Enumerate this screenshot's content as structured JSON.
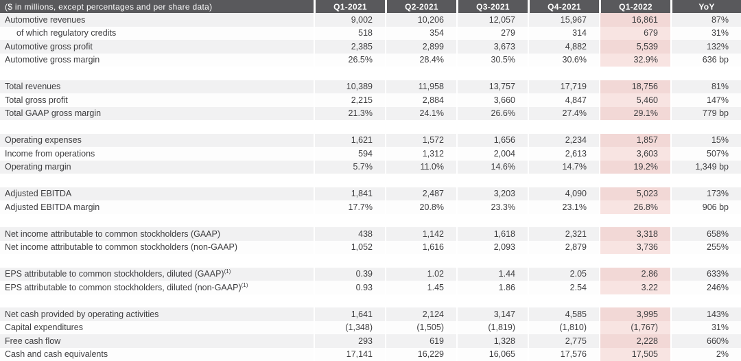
{
  "colors": {
    "header_bg": "#59595c",
    "header_text": "#ffffff",
    "stripe_gray": "#f1f1f2",
    "row_white": "#fdfdfd",
    "highlight_pink_on_gray_row": "#f2d8d6",
    "highlight_pink_on_white_row": "#f8e4e2",
    "body_text": "#3e3e40"
  },
  "chart_data": {
    "type": "table",
    "title": "($ in millions, except percentages and per share data)",
    "columns": [
      "Q1-2021",
      "Q2-2021",
      "Q3-2021",
      "Q4-2021",
      "Q1-2022",
      "YoY"
    ],
    "highlight_column": "Q1-2022",
    "groups": [
      {
        "rows": [
          {
            "label": "Automotive revenues",
            "values": [
              "9,002",
              "10,206",
              "12,057",
              "15,967",
              "16,861",
              "87%"
            ]
          },
          {
            "label": "of which regulatory credits",
            "indent": true,
            "values": [
              "518",
              "354",
              "279",
              "314",
              "679",
              "31%"
            ]
          },
          {
            "label": "Automotive gross profit",
            "values": [
              "2,385",
              "2,899",
              "3,673",
              "4,882",
              "5,539",
              "132%"
            ]
          },
          {
            "label": "Automotive gross margin",
            "values": [
              "26.5%",
              "28.4%",
              "30.5%",
              "30.6%",
              "32.9%",
              "636 bp"
            ]
          }
        ]
      },
      {
        "rows": [
          {
            "label": "Total revenues",
            "values": [
              "10,389",
              "11,958",
              "13,757",
              "17,719",
              "18,756",
              "81%"
            ]
          },
          {
            "label": "Total gross profit",
            "values": [
              "2,215",
              "2,884",
              "3,660",
              "4,847",
              "5,460",
              "147%"
            ]
          },
          {
            "label": "Total GAAP gross margin",
            "values": [
              "21.3%",
              "24.1%",
              "26.6%",
              "27.4%",
              "29.1%",
              "779 bp"
            ]
          }
        ]
      },
      {
        "rows": [
          {
            "label": "Operating expenses",
            "values": [
              "1,621",
              "1,572",
              "1,656",
              "2,234",
              "1,857",
              "15%"
            ]
          },
          {
            "label": "Income from operations",
            "values": [
              "594",
              "1,312",
              "2,004",
              "2,613",
              "3,603",
              "507%"
            ]
          },
          {
            "label": "Operating margin",
            "values": [
              "5.7%",
              "11.0%",
              "14.6%",
              "14.7%",
              "19.2%",
              "1,349 bp"
            ]
          }
        ]
      },
      {
        "rows": [
          {
            "label": "Adjusted EBITDA",
            "values": [
              "1,841",
              "2,487",
              "3,203",
              "4,090",
              "5,023",
              "173%"
            ]
          },
          {
            "label": "Adjusted EBITDA margin",
            "values": [
              "17.7%",
              "20.8%",
              "23.3%",
              "23.1%",
              "26.8%",
              "906 bp"
            ]
          }
        ]
      },
      {
        "rows": [
          {
            "label": "Net income attributable to common stockholders (GAAP)",
            "values": [
              "438",
              "1,142",
              "1,618",
              "2,321",
              "3,318",
              "658%"
            ]
          },
          {
            "label": "Net income attributable to common stockholders (non-GAAP)",
            "values": [
              "1,052",
              "1,616",
              "2,093",
              "2,879",
              "3,736",
              "255%"
            ]
          }
        ]
      },
      {
        "rows": [
          {
            "label": "EPS attributable to common stockholders, diluted (GAAP)",
            "sup": "(1)",
            "values": [
              "0.39",
              "1.02",
              "1.44",
              "2.05",
              "2.86",
              "633%"
            ]
          },
          {
            "label": "EPS attributable to common stockholders, diluted (non-GAAP)",
            "sup": "(1)",
            "values": [
              "0.93",
              "1.45",
              "1.86",
              "2.54",
              "3.22",
              "246%"
            ]
          }
        ]
      },
      {
        "rows": [
          {
            "label": "Net cash provided by operating activities",
            "values": [
              "1,641",
              "2,124",
              "3,147",
              "4,585",
              "3,995",
              "143%"
            ]
          },
          {
            "label": "Capital expenditures",
            "values": [
              "(1,348)",
              "(1,505)",
              "(1,819)",
              "(1,810)",
              "(1,767)",
              "31%"
            ]
          },
          {
            "label": "Free cash flow",
            "values": [
              "293",
              "619",
              "1,328",
              "2,775",
              "2,228",
              "660%"
            ]
          },
          {
            "label": "Cash and cash equivalents",
            "values": [
              "17,141",
              "16,229",
              "16,065",
              "17,576",
              "17,505",
              "2%"
            ]
          }
        ]
      }
    ]
  }
}
